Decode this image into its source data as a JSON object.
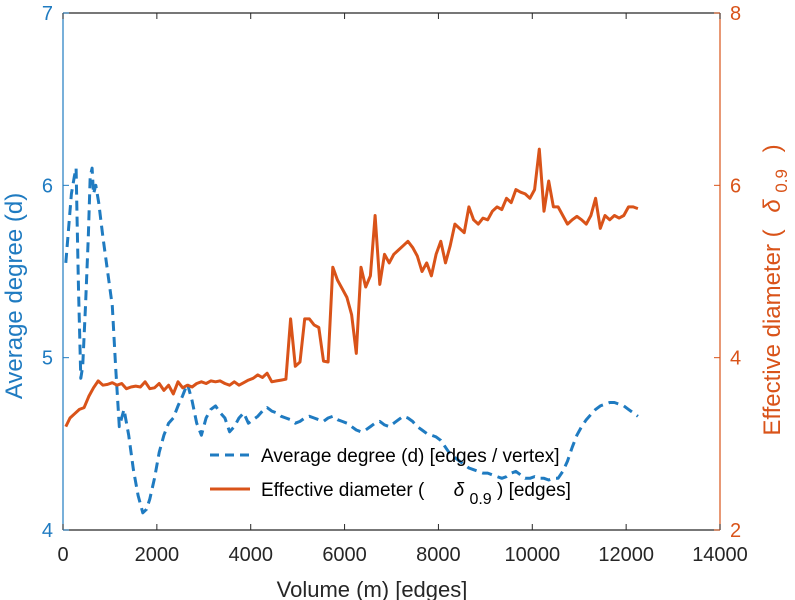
{
  "chart_data": {
    "type": "line",
    "title": "",
    "xlabel": "Volume (m) [edges]",
    "xlim": [
      0,
      14000
    ],
    "xticks": [
      0,
      2000,
      4000,
      6000,
      8000,
      10000,
      12000,
      14000
    ],
    "xtick_labels": [
      "0",
      "2000",
      "4000",
      "6000",
      "8000",
      "10000",
      "12000",
      "14000"
    ],
    "y_left": {
      "label": "Average degree (d)",
      "lim": [
        4,
        7
      ],
      "ticks": [
        4,
        5,
        6,
        7
      ],
      "tick_labels": [
        "4",
        "5",
        "6",
        "7"
      ],
      "color": "#1f7bc1"
    },
    "y_right": {
      "label_prefix": "Effective diameter (",
      "label_symbol": "δ",
      "label_subscript": "0.9",
      "label_suffix": ")",
      "lim": [
        2,
        8
      ],
      "ticks": [
        2,
        4,
        6,
        8
      ],
      "tick_labels": [
        "2",
        "4",
        "6",
        "8"
      ],
      "color": "#d95319"
    },
    "legend": {
      "position": "lower-center",
      "entries": [
        {
          "label": "Average degree (d) [edges / vertex]",
          "style": "dashed",
          "color": "#1f7bc1"
        },
        {
          "label_prefix": "Effective diameter (",
          "label_symbol": "δ",
          "label_subscript": "0.9",
          "label_suffix": ") [edges]",
          "style": "solid",
          "color": "#d95319"
        }
      ]
    },
    "series": [
      {
        "name": "Average degree (d) [edges / vertex]",
        "axis": "left",
        "style": "dashed",
        "color": "#1f7bc1",
        "points": [
          [
            60,
            5.55
          ],
          [
            120,
            5.75
          ],
          [
            180,
            5.95
          ],
          [
            240,
            6.05
          ],
          [
            280,
            6.1
          ],
          [
            300,
            5.8
          ],
          [
            330,
            5.4
          ],
          [
            380,
            4.88
          ],
          [
            420,
            4.95
          ],
          [
            480,
            5.3
          ],
          [
            540,
            5.7
          ],
          [
            580,
            6.05
          ],
          [
            620,
            6.1
          ],
          [
            650,
            5.95
          ],
          [
            700,
            6.0
          ],
          [
            760,
            5.9
          ],
          [
            850,
            5.7
          ],
          [
            950,
            5.5
          ],
          [
            1050,
            5.3
          ],
          [
            1120,
            4.95
          ],
          [
            1200,
            4.6
          ],
          [
            1300,
            4.7
          ],
          [
            1400,
            4.55
          ],
          [
            1500,
            4.35
          ],
          [
            1600,
            4.2
          ],
          [
            1700,
            4.1
          ],
          [
            1780,
            4.12
          ],
          [
            1850,
            4.18
          ],
          [
            1950,
            4.3
          ],
          [
            2050,
            4.45
          ],
          [
            2150,
            4.55
          ],
          [
            2250,
            4.62
          ],
          [
            2350,
            4.65
          ],
          [
            2450,
            4.72
          ],
          [
            2550,
            4.78
          ],
          [
            2650,
            4.85
          ],
          [
            2750,
            4.75
          ],
          [
            2850,
            4.62
          ],
          [
            2950,
            4.55
          ],
          [
            3050,
            4.65
          ],
          [
            3150,
            4.7
          ],
          [
            3250,
            4.72
          ],
          [
            3350,
            4.68
          ],
          [
            3450,
            4.65
          ],
          [
            3550,
            4.57
          ],
          [
            3650,
            4.6
          ],
          [
            3750,
            4.65
          ],
          [
            3850,
            4.68
          ],
          [
            3950,
            4.62
          ],
          [
            4050,
            4.64
          ],
          [
            4150,
            4.66
          ],
          [
            4250,
            4.69
          ],
          [
            4350,
            4.71
          ],
          [
            4450,
            4.69
          ],
          [
            4550,
            4.68
          ],
          [
            4650,
            4.66
          ],
          [
            4750,
            4.65
          ],
          [
            4850,
            4.64
          ],
          [
            4950,
            4.62
          ],
          [
            5050,
            4.63
          ],
          [
            5150,
            4.65
          ],
          [
            5250,
            4.66
          ],
          [
            5350,
            4.65
          ],
          [
            5450,
            4.64
          ],
          [
            5550,
            4.63
          ],
          [
            5650,
            4.65
          ],
          [
            5750,
            4.66
          ],
          [
            5850,
            4.64
          ],
          [
            5950,
            4.63
          ],
          [
            6050,
            4.62
          ],
          [
            6150,
            4.6
          ],
          [
            6250,
            4.58
          ],
          [
            6350,
            4.57
          ],
          [
            6450,
            4.58
          ],
          [
            6550,
            4.6
          ],
          [
            6650,
            4.62
          ],
          [
            6750,
            4.63
          ],
          [
            6850,
            4.61
          ],
          [
            6950,
            4.6
          ],
          [
            7050,
            4.62
          ],
          [
            7150,
            4.64
          ],
          [
            7250,
            4.66
          ],
          [
            7350,
            4.65
          ],
          [
            7450,
            4.63
          ],
          [
            7550,
            4.6
          ],
          [
            7650,
            4.58
          ],
          [
            7750,
            4.56
          ],
          [
            7850,
            4.55
          ],
          [
            7950,
            4.54
          ],
          [
            8050,
            4.52
          ],
          [
            8150,
            4.48
          ],
          [
            8250,
            4.44
          ],
          [
            8350,
            4.42
          ],
          [
            8450,
            4.4
          ],
          [
            8550,
            4.38
          ],
          [
            8650,
            4.36
          ],
          [
            8750,
            4.35
          ],
          [
            8850,
            4.34
          ],
          [
            8950,
            4.33
          ],
          [
            9050,
            4.33
          ],
          [
            9150,
            4.32
          ],
          [
            9250,
            4.31
          ],
          [
            9350,
            4.3
          ],
          [
            9450,
            4.31
          ],
          [
            9550,
            4.33
          ],
          [
            9650,
            4.34
          ],
          [
            9750,
            4.32
          ],
          [
            9850,
            4.3
          ],
          [
            9950,
            4.3
          ],
          [
            10050,
            4.31
          ],
          [
            10150,
            4.3
          ],
          [
            10250,
            4.3
          ],
          [
            10350,
            4.29
          ],
          [
            10450,
            4.3
          ],
          [
            10550,
            4.3
          ],
          [
            10650,
            4.34
          ],
          [
            10750,
            4.4
          ],
          [
            10850,
            4.48
          ],
          [
            10950,
            4.55
          ],
          [
            11050,
            4.6
          ],
          [
            11150,
            4.64
          ],
          [
            11250,
            4.67
          ],
          [
            11350,
            4.7
          ],
          [
            11450,
            4.72
          ],
          [
            11550,
            4.73
          ],
          [
            11650,
            4.74
          ],
          [
            11750,
            4.74
          ],
          [
            11850,
            4.73
          ],
          [
            11950,
            4.72
          ],
          [
            12050,
            4.7
          ],
          [
            12150,
            4.68
          ],
          [
            12250,
            4.66
          ]
        ]
      },
      {
        "name": "Effective diameter (δ0.9) [edges]",
        "axis": "right",
        "style": "solid",
        "color": "#d95319",
        "points": [
          [
            60,
            3.2
          ],
          [
            150,
            3.3
          ],
          [
            250,
            3.35
          ],
          [
            350,
            3.4
          ],
          [
            450,
            3.42
          ],
          [
            550,
            3.55
          ],
          [
            650,
            3.65
          ],
          [
            750,
            3.73
          ],
          [
            850,
            3.68
          ],
          [
            950,
            3.69
          ],
          [
            1050,
            3.71
          ],
          [
            1150,
            3.68
          ],
          [
            1250,
            3.7
          ],
          [
            1350,
            3.64
          ],
          [
            1450,
            3.66
          ],
          [
            1550,
            3.67
          ],
          [
            1650,
            3.66
          ],
          [
            1750,
            3.72
          ],
          [
            1850,
            3.64
          ],
          [
            1950,
            3.65
          ],
          [
            2050,
            3.7
          ],
          [
            2150,
            3.62
          ],
          [
            2250,
            3.68
          ],
          [
            2350,
            3.58
          ],
          [
            2450,
            3.72
          ],
          [
            2550,
            3.65
          ],
          [
            2650,
            3.68
          ],
          [
            2750,
            3.66
          ],
          [
            2850,
            3.7
          ],
          [
            2950,
            3.72
          ],
          [
            3050,
            3.7
          ],
          [
            3150,
            3.73
          ],
          [
            3250,
            3.72
          ],
          [
            3350,
            3.73
          ],
          [
            3450,
            3.7
          ],
          [
            3550,
            3.68
          ],
          [
            3650,
            3.72
          ],
          [
            3750,
            3.68
          ],
          [
            3850,
            3.71
          ],
          [
            3950,
            3.74
          ],
          [
            4050,
            3.76
          ],
          [
            4150,
            3.8
          ],
          [
            4250,
            3.77
          ],
          [
            4350,
            3.82
          ],
          [
            4450,
            3.72
          ],
          [
            4550,
            3.73
          ],
          [
            4650,
            3.74
          ],
          [
            4750,
            3.75
          ],
          [
            4850,
            4.45
          ],
          [
            4950,
            3.9
          ],
          [
            5050,
            3.95
          ],
          [
            5150,
            4.45
          ],
          [
            5250,
            4.45
          ],
          [
            5350,
            4.38
          ],
          [
            5450,
            4.35
          ],
          [
            5550,
            3.96
          ],
          [
            5650,
            3.95
          ],
          [
            5750,
            5.05
          ],
          [
            5850,
            4.9
          ],
          [
            5950,
            4.8
          ],
          [
            6050,
            4.7
          ],
          [
            6150,
            4.5
          ],
          [
            6250,
            4.05
          ],
          [
            6350,
            5.05
          ],
          [
            6450,
            4.82
          ],
          [
            6550,
            4.95
          ],
          [
            6650,
            5.65
          ],
          [
            6750,
            4.85
          ],
          [
            6850,
            5.2
          ],
          [
            6950,
            5.1
          ],
          [
            7050,
            5.2
          ],
          [
            7150,
            5.25
          ],
          [
            7250,
            5.3
          ],
          [
            7350,
            5.35
          ],
          [
            7450,
            5.28
          ],
          [
            7550,
            5.18
          ],
          [
            7650,
            5.0
          ],
          [
            7750,
            5.1
          ],
          [
            7850,
            4.95
          ],
          [
            7950,
            5.2
          ],
          [
            8050,
            5.35
          ],
          [
            8150,
            5.1
          ],
          [
            8250,
            5.3
          ],
          [
            8350,
            5.55
          ],
          [
            8450,
            5.5
          ],
          [
            8550,
            5.45
          ],
          [
            8650,
            5.75
          ],
          [
            8750,
            5.6
          ],
          [
            8850,
            5.55
          ],
          [
            8950,
            5.62
          ],
          [
            9050,
            5.6
          ],
          [
            9150,
            5.7
          ],
          [
            9250,
            5.75
          ],
          [
            9350,
            5.72
          ],
          [
            9450,
            5.85
          ],
          [
            9550,
            5.8
          ],
          [
            9650,
            5.95
          ],
          [
            9750,
            5.92
          ],
          [
            9850,
            5.9
          ],
          [
            9950,
            5.85
          ],
          [
            10050,
            5.95
          ],
          [
            10150,
            6.42
          ],
          [
            10250,
            5.7
          ],
          [
            10350,
            6.05
          ],
          [
            10450,
            5.75
          ],
          [
            10550,
            5.75
          ],
          [
            10650,
            5.65
          ],
          [
            10750,
            5.55
          ],
          [
            10850,
            5.6
          ],
          [
            10950,
            5.64
          ],
          [
            11050,
            5.6
          ],
          [
            11150,
            5.55
          ],
          [
            11250,
            5.65
          ],
          [
            11350,
            5.85
          ],
          [
            11450,
            5.5
          ],
          [
            11550,
            5.65
          ],
          [
            11650,
            5.6
          ],
          [
            11750,
            5.65
          ],
          [
            11850,
            5.62
          ],
          [
            11950,
            5.65
          ],
          [
            12050,
            5.75
          ],
          [
            12150,
            5.75
          ],
          [
            12250,
            5.73
          ]
        ]
      }
    ]
  }
}
